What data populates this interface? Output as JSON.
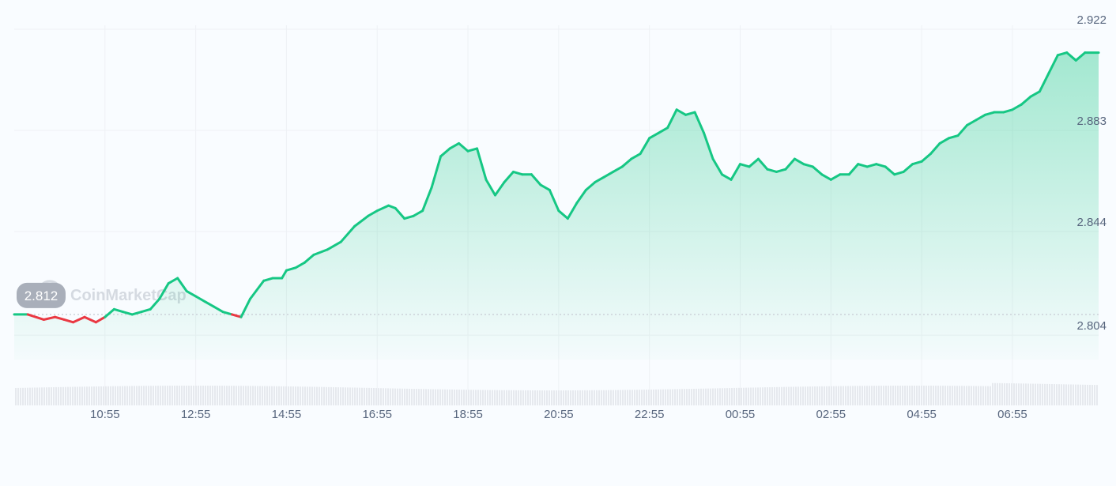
{
  "watermark": {
    "text": "CoinMarketCap",
    "icon": "coinmarketcap-logo-icon"
  },
  "colors": {
    "up": "#16c784",
    "down": "#ea3943",
    "grid": "#eef1f5",
    "volume": "#e6e9ee",
    "baseline": "#c9ced6",
    "tag_bg": "#a9afba"
  },
  "chart_data": {
    "type": "area",
    "title": "",
    "xlabel": "",
    "ylabel": "",
    "grid": true,
    "y_axis_position": "right",
    "ylim": [
      2.7946,
      2.9272
    ],
    "baseline_value": 2.812,
    "yticks": [
      "2.922",
      "2.883",
      "2.844",
      "2.804"
    ],
    "ytick_values": [
      2.922,
      2.883,
      2.844,
      2.804
    ],
    "xticks": [
      "10:55",
      "12:55",
      "14:55",
      "16:55",
      "18:55",
      "20:55",
      "22:55",
      "00:55",
      "02:55",
      "04:55",
      "06:55"
    ],
    "xtick_hours": [
      1,
      3,
      5,
      7,
      9,
      11,
      13,
      15,
      17,
      19,
      21
    ],
    "x_range_hours": [
      -1,
      22.9
    ],
    "series": [
      {
        "x_hours": [
          -1,
          -0.7,
          -0.35,
          -0.1,
          0.1,
          0.3,
          0.55,
          0.8,
          1.0,
          1.2,
          1.4,
          1.6,
          1.8,
          2.0,
          2.2,
          2.4,
          2.6,
          2.8,
          3.0,
          3.2,
          3.4,
          3.6,
          3.8,
          4.0,
          4.2,
          4.5,
          4.7,
          4.9,
          5.0,
          5.2,
          5.4,
          5.6,
          5.9,
          6.2,
          6.5,
          6.8,
          7.0,
          7.25,
          7.4,
          7.6,
          7.8,
          8.0,
          8.2,
          8.4,
          8.6,
          8.8,
          9.0,
          9.2,
          9.4,
          9.6,
          9.8,
          10.0,
          10.2,
          10.4,
          10.6,
          10.8,
          11.0,
          11.2,
          11.4,
          11.6,
          11.8,
          12.0,
          12.2,
          12.4,
          12.6,
          12.8,
          13.0,
          13.2,
          13.4,
          13.6,
          13.8,
          14.0,
          14.2,
          14.4,
          14.6,
          14.8,
          15.0,
          15.2,
          15.4,
          15.6,
          15.8,
          16.0,
          16.2,
          16.4,
          16.6,
          16.8,
          17.0,
          17.2,
          17.4,
          17.6,
          17.8,
          18.0,
          18.2,
          18.4,
          18.6,
          18.8,
          19.0,
          19.2,
          19.4,
          19.6,
          19.8,
          20.0,
          20.2,
          20.4,
          20.6,
          20.8,
          21.0,
          21.2,
          21.4,
          21.6,
          21.8,
          22.0,
          22.2,
          22.4,
          22.6,
          22.9
        ],
        "values": [
          2.812,
          2.812,
          2.81,
          2.811,
          2.81,
          2.809,
          2.811,
          2.809,
          2.811,
          2.814,
          2.813,
          2.812,
          2.813,
          2.814,
          2.818,
          2.824,
          2.826,
          2.821,
          2.819,
          2.817,
          2.815,
          2.813,
          2.812,
          2.811,
          2.818,
          2.825,
          2.826,
          2.826,
          2.829,
          2.83,
          2.832,
          2.835,
          2.837,
          2.84,
          2.846,
          2.85,
          2.852,
          2.854,
          2.853,
          2.849,
          2.85,
          2.852,
          2.861,
          2.873,
          2.876,
          2.878,
          2.875,
          2.876,
          2.864,
          2.858,
          2.863,
          2.867,
          2.866,
          2.866,
          2.862,
          2.86,
          2.852,
          2.849,
          2.855,
          2.86,
          2.863,
          2.865,
          2.867,
          2.869,
          2.872,
          2.874,
          2.88,
          2.882,
          2.884,
          2.891,
          2.889,
          2.89,
          2.882,
          2.872,
          2.866,
          2.864,
          2.87,
          2.869,
          2.872,
          2.868,
          2.867,
          2.868,
          2.872,
          2.87,
          2.869,
          2.866,
          2.864,
          2.866,
          2.866,
          2.87,
          2.869,
          2.87,
          2.869,
          2.866,
          2.867,
          2.87,
          2.871,
          2.874,
          2.878,
          2.88,
          2.881,
          2.885,
          2.887,
          2.889,
          2.89,
          2.89,
          2.891,
          2.893,
          2.896,
          2.898,
          2.905,
          2.912,
          2.913,
          2.91,
          2.913,
          2.913
        ]
      }
    ]
  }
}
